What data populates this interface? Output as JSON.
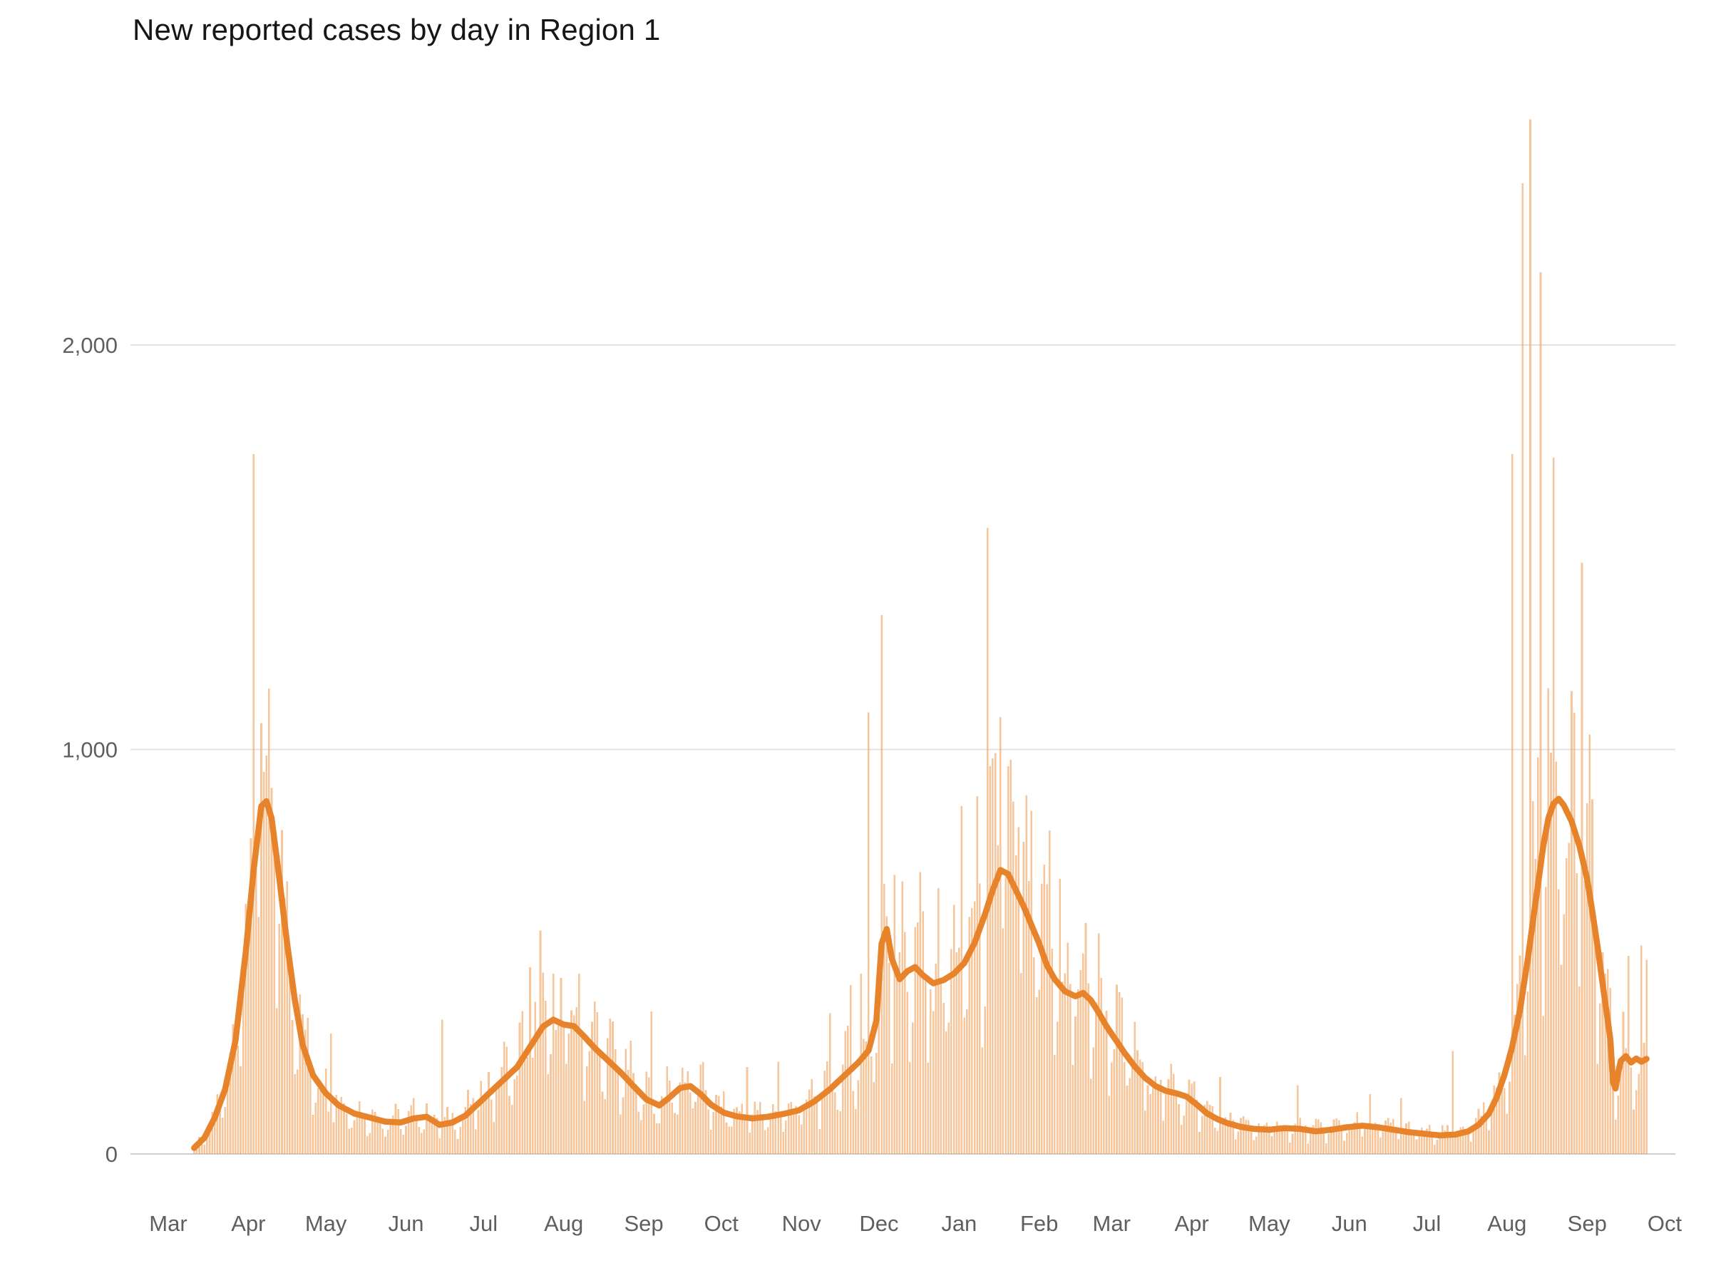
{
  "page": {
    "title": "New reported cases by day in Region 1"
  },
  "chart_data": {
    "type": "bar+line",
    "title": "New reported cases by day in Region 1",
    "subtitle": "",
    "legend": null,
    "grid": true,
    "x_axis": {
      "unit": "day",
      "start_day_index": 10,
      "end_day_index": 572,
      "total_days": 579,
      "month_ticks": [
        {
          "label": "Mar",
          "day": 0
        },
        {
          "label": "Apr",
          "day": 31
        },
        {
          "label": "May",
          "day": 61
        },
        {
          "label": "Jun",
          "day": 92
        },
        {
          "label": "Jul",
          "day": 122
        },
        {
          "label": "Aug",
          "day": 153
        },
        {
          "label": "Sep",
          "day": 184
        },
        {
          "label": "Oct",
          "day": 214
        },
        {
          "label": "Nov",
          "day": 245
        },
        {
          "label": "Dec",
          "day": 275
        },
        {
          "label": "Jan",
          "day": 306
        },
        {
          "label": "Feb",
          "day": 337
        },
        {
          "label": "Mar",
          "day": 365
        },
        {
          "label": "Apr",
          "day": 396
        },
        {
          "label": "May",
          "day": 426
        },
        {
          "label": "Jun",
          "day": 457
        },
        {
          "label": "Jul",
          "day": 487
        },
        {
          "label": "Aug",
          "day": 518
        },
        {
          "label": "Sep",
          "day": 549
        },
        {
          "label": "Oct",
          "day": 579
        }
      ]
    },
    "y_axis": {
      "ylim": [
        0,
        2624
      ],
      "ticks": [
        {
          "value": 0,
          "label": "0"
        },
        {
          "value": 1000,
          "label": "1,000"
        },
        {
          "value": 2000,
          "label": "2,000"
        }
      ]
    },
    "series": [
      {
        "name": "daily_new_cases",
        "type": "bar",
        "color": "#f2a25c",
        "opacity": 0.62,
        "weekday_factors": [
          0.55,
          0.72,
          1.05,
          1.18,
          1.22,
          1.15,
          0.92
        ],
        "jitter": {
          "min": 0.78,
          "range": 0.55
        },
        "notable_bars": [
          [
            33,
            1730
          ],
          [
            36,
            1065
          ],
          [
            38,
            985
          ],
          [
            40,
            905
          ],
          [
            63,
            298
          ],
          [
            106,
            332
          ],
          [
            140,
            462
          ],
          [
            144,
            552
          ],
          [
            187,
            352
          ],
          [
            224,
            215
          ],
          [
            236,
            228
          ],
          [
            256,
            348
          ],
          [
            264,
            418
          ],
          [
            268,
            446
          ],
          [
            271,
            1092
          ],
          [
            276,
            1332
          ],
          [
            281,
            690
          ],
          [
            307,
            860
          ],
          [
            313,
            885
          ],
          [
            317,
            1548
          ],
          [
            322,
            1080
          ],
          [
            329,
            808
          ],
          [
            341,
            800
          ],
          [
            345,
            680
          ],
          [
            360,
            545
          ],
          [
            368,
            400
          ],
          [
            407,
            190
          ],
          [
            437,
            170
          ],
          [
            465,
            148
          ],
          [
            477,
            138
          ],
          [
            497,
            255
          ],
          [
            520,
            1730
          ],
          [
            524,
            2400
          ],
          [
            527,
            2558
          ],
          [
            531,
            2180
          ],
          [
            536,
            1722
          ],
          [
            547,
            1462
          ],
          [
            565,
            490
          ],
          [
            570,
            515
          ],
          [
            572,
            480
          ]
        ]
      },
      {
        "name": "seven_day_average",
        "type": "line",
        "color": "#e7832b",
        "stroke_width": 8.5,
        "points": [
          [
            10,
            15
          ],
          [
            14,
            40
          ],
          [
            18,
            90
          ],
          [
            22,
            160
          ],
          [
            26,
            280
          ],
          [
            30,
            500
          ],
          [
            33,
            700
          ],
          [
            36,
            860
          ],
          [
            38,
            872
          ],
          [
            40,
            830
          ],
          [
            43,
            680
          ],
          [
            46,
            520
          ],
          [
            49,
            380
          ],
          [
            52,
            270
          ],
          [
            56,
            195
          ],
          [
            61,
            150
          ],
          [
            66,
            120
          ],
          [
            72,
            100
          ],
          [
            78,
            90
          ],
          [
            84,
            80
          ],
          [
            90,
            78
          ],
          [
            95,
            88
          ],
          [
            100,
            92
          ],
          [
            105,
            72
          ],
          [
            110,
            78
          ],
          [
            115,
            95
          ],
          [
            120,
            125
          ],
          [
            125,
            155
          ],
          [
            130,
            185
          ],
          [
            135,
            215
          ],
          [
            140,
            265
          ],
          [
            145,
            315
          ],
          [
            149,
            332
          ],
          [
            153,
            320
          ],
          [
            157,
            316
          ],
          [
            161,
            290
          ],
          [
            165,
            262
          ],
          [
            170,
            232
          ],
          [
            175,
            202
          ],
          [
            180,
            168
          ],
          [
            185,
            135
          ],
          [
            190,
            120
          ],
          [
            194,
            140
          ],
          [
            198,
            163
          ],
          [
            202,
            168
          ],
          [
            206,
            148
          ],
          [
            210,
            122
          ],
          [
            215,
            102
          ],
          [
            220,
            93
          ],
          [
            226,
            88
          ],
          [
            232,
            92
          ],
          [
            238,
            99
          ],
          [
            244,
            108
          ],
          [
            250,
            130
          ],
          [
            256,
            160
          ],
          [
            262,
            196
          ],
          [
            267,
            226
          ],
          [
            271,
            256
          ],
          [
            274,
            330
          ],
          [
            276,
            520
          ],
          [
            278,
            556
          ],
          [
            280,
            482
          ],
          [
            283,
            432
          ],
          [
            286,
            452
          ],
          [
            289,
            462
          ],
          [
            292,
            442
          ],
          [
            296,
            422
          ],
          [
            300,
            430
          ],
          [
            304,
            446
          ],
          [
            308,
            472
          ],
          [
            312,
            522
          ],
          [
            316,
            592
          ],
          [
            319,
            652
          ],
          [
            322,
            702
          ],
          [
            325,
            692
          ],
          [
            328,
            652
          ],
          [
            331,
            612
          ],
          [
            334,
            566
          ],
          [
            337,
            520
          ],
          [
            340,
            466
          ],
          [
            343,
            432
          ],
          [
            347,
            402
          ],
          [
            351,
            390
          ],
          [
            354,
            398
          ],
          [
            357,
            380
          ],
          [
            360,
            350
          ],
          [
            363,
            316
          ],
          [
            366,
            288
          ],
          [
            370,
            250
          ],
          [
            374,
            216
          ],
          [
            378,
            188
          ],
          [
            382,
            168
          ],
          [
            386,
            156
          ],
          [
            390,
            150
          ],
          [
            394,
            142
          ],
          [
            398,
            122
          ],
          [
            402,
            100
          ],
          [
            406,
            86
          ],
          [
            410,
            76
          ],
          [
            415,
            67
          ],
          [
            420,
            62
          ],
          [
            426,
            60
          ],
          [
            432,
            64
          ],
          [
            438,
            62
          ],
          [
            444,
            56
          ],
          [
            450,
            60
          ],
          [
            456,
            66
          ],
          [
            462,
            70
          ],
          [
            468,
            66
          ],
          [
            474,
            60
          ],
          [
            480,
            54
          ],
          [
            486,
            50
          ],
          [
            492,
            46
          ],
          [
            498,
            48
          ],
          [
            503,
            56
          ],
          [
            507,
            72
          ],
          [
            511,
            100
          ],
          [
            514,
            140
          ],
          [
            517,
            195
          ],
          [
            520,
            265
          ],
          [
            523,
            355
          ],
          [
            526,
            480
          ],
          [
            529,
            620
          ],
          [
            532,
            760
          ],
          [
            534,
            830
          ],
          [
            536,
            866
          ],
          [
            538,
            878
          ],
          [
            540,
            862
          ],
          [
            543,
            822
          ],
          [
            546,
            762
          ],
          [
            549,
            680
          ],
          [
            551,
            600
          ],
          [
            553,
            515
          ],
          [
            555,
            420
          ],
          [
            557,
            330
          ],
          [
            558,
            282
          ],
          [
            559,
            178
          ],
          [
            560,
            162
          ],
          [
            561,
            200
          ],
          [
            562,
            230
          ],
          [
            564,
            242
          ],
          [
            566,
            226
          ],
          [
            568,
            236
          ],
          [
            570,
            228
          ],
          [
            572,
            235
          ]
        ]
      }
    ],
    "colors": {
      "bar": "#f2a25c",
      "line": "#e7832b",
      "grid": "#e2e2e2",
      "baseline": "#cfcfcf",
      "axis_text": "#5f5f5f",
      "title_text": "#161616"
    }
  }
}
